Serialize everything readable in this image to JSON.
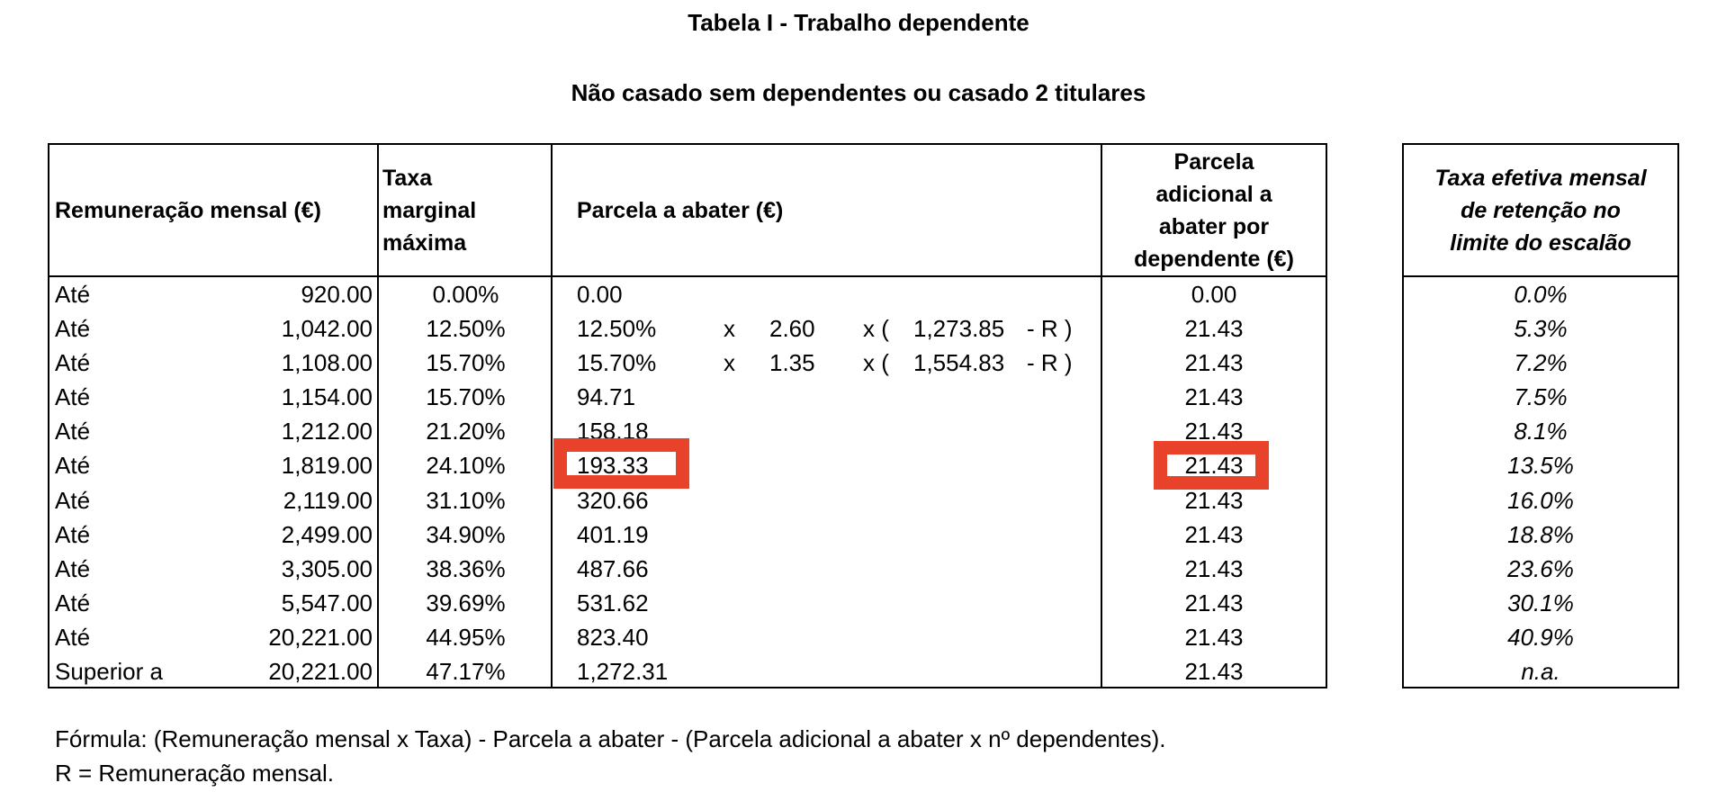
{
  "title": "Tabela I - Trabalho dependente",
  "subtitle": "Não casado sem dependentes ou casado 2 titulares",
  "headers": {
    "remuneracao": "Remuneração mensal (€)",
    "taxa": [
      "Taxa",
      "marginal",
      "máxima"
    ],
    "parcela": "Parcela a abater (€)",
    "dependente": [
      "Parcela",
      "adicional a",
      "abater por",
      "dependente (€)"
    ],
    "efetiva": [
      "Taxa efetiva mensal",
      "de retenção no",
      "limite do escalão"
    ]
  },
  "rows": [
    {
      "label": "Até",
      "valor": "920.00",
      "taxa": "0.00%",
      "parcela": "0.00",
      "x1": "",
      "mult": "",
      "x2": "",
      "base": "",
      "r": "",
      "dep": "0.00",
      "efetiva": "0.0%"
    },
    {
      "label": "Até",
      "valor": "1,042.00",
      "taxa": "12.50%",
      "parcela": "12.50%",
      "x1": "x",
      "mult": "2.60",
      "x2": "x (",
      "base": "1,273.85",
      "r": "- R )",
      "dep": "21.43",
      "efetiva": "5.3%"
    },
    {
      "label": "Até",
      "valor": "1,108.00",
      "taxa": "15.70%",
      "parcela": "15.70%",
      "x1": "x",
      "mult": "1.35",
      "x2": "x (",
      "base": "1,554.83",
      "r": "- R )",
      "dep": "21.43",
      "efetiva": "7.2%"
    },
    {
      "label": "Até",
      "valor": "1,154.00",
      "taxa": "15.70%",
      "parcela": "94.71",
      "x1": "",
      "mult": "",
      "x2": "",
      "base": "",
      "r": "",
      "dep": "21.43",
      "efetiva": "7.5%"
    },
    {
      "label": "Até",
      "valor": "1,212.00",
      "taxa": "21.20%",
      "parcela": "158.18",
      "x1": "",
      "mult": "",
      "x2": "",
      "base": "",
      "r": "",
      "dep": "21.43",
      "efetiva": "8.1%"
    },
    {
      "label": "Até",
      "valor": "1,819.00",
      "taxa": "24.10%",
      "parcela": "193.33",
      "x1": "",
      "mult": "",
      "x2": "",
      "base": "",
      "r": "",
      "dep": "21.43",
      "efetiva": "13.5%"
    },
    {
      "label": "Até",
      "valor": "2,119.00",
      "taxa": "31.10%",
      "parcela": "320.66",
      "x1": "",
      "mult": "",
      "x2": "",
      "base": "",
      "r": "",
      "dep": "21.43",
      "efetiva": "16.0%"
    },
    {
      "label": "Até",
      "valor": "2,499.00",
      "taxa": "34.90%",
      "parcela": "401.19",
      "x1": "",
      "mult": "",
      "x2": "",
      "base": "",
      "r": "",
      "dep": "21.43",
      "efetiva": "18.8%"
    },
    {
      "label": "Até",
      "valor": "3,305.00",
      "taxa": "38.36%",
      "parcela": "487.66",
      "x1": "",
      "mult": "",
      "x2": "",
      "base": "",
      "r": "",
      "dep": "21.43",
      "efetiva": "23.6%"
    },
    {
      "label": "Até",
      "valor": "5,547.00",
      "taxa": "39.69%",
      "parcela": "531.62",
      "x1": "",
      "mult": "",
      "x2": "",
      "base": "",
      "r": "",
      "dep": "21.43",
      "efetiva": "30.1%"
    },
    {
      "label": "Até",
      "valor": "20,221.00",
      "taxa": "44.95%",
      "parcela": "823.40",
      "x1": "",
      "mult": "",
      "x2": "",
      "base": "",
      "r": "",
      "dep": "21.43",
      "efetiva": "40.9%"
    },
    {
      "label": "Superior a",
      "valor": "20,221.00",
      "taxa": "47.17%",
      "parcela": "1,272.31",
      "x1": "",
      "mult": "",
      "x2": "",
      "base": "",
      "r": "",
      "dep": "21.43",
      "efetiva": "n.a."
    }
  ],
  "highlights": {
    "color": "#E8432A",
    "cells": [
      "rows.5.parcela",
      "rows.5.dep"
    ]
  },
  "footer": {
    "formula": "Fórmula: (Remuneração mensal x Taxa) - Parcela a abater - (Parcela adicional a abater x nº dependentes).",
    "legend": "R = Remuneração mensal."
  }
}
